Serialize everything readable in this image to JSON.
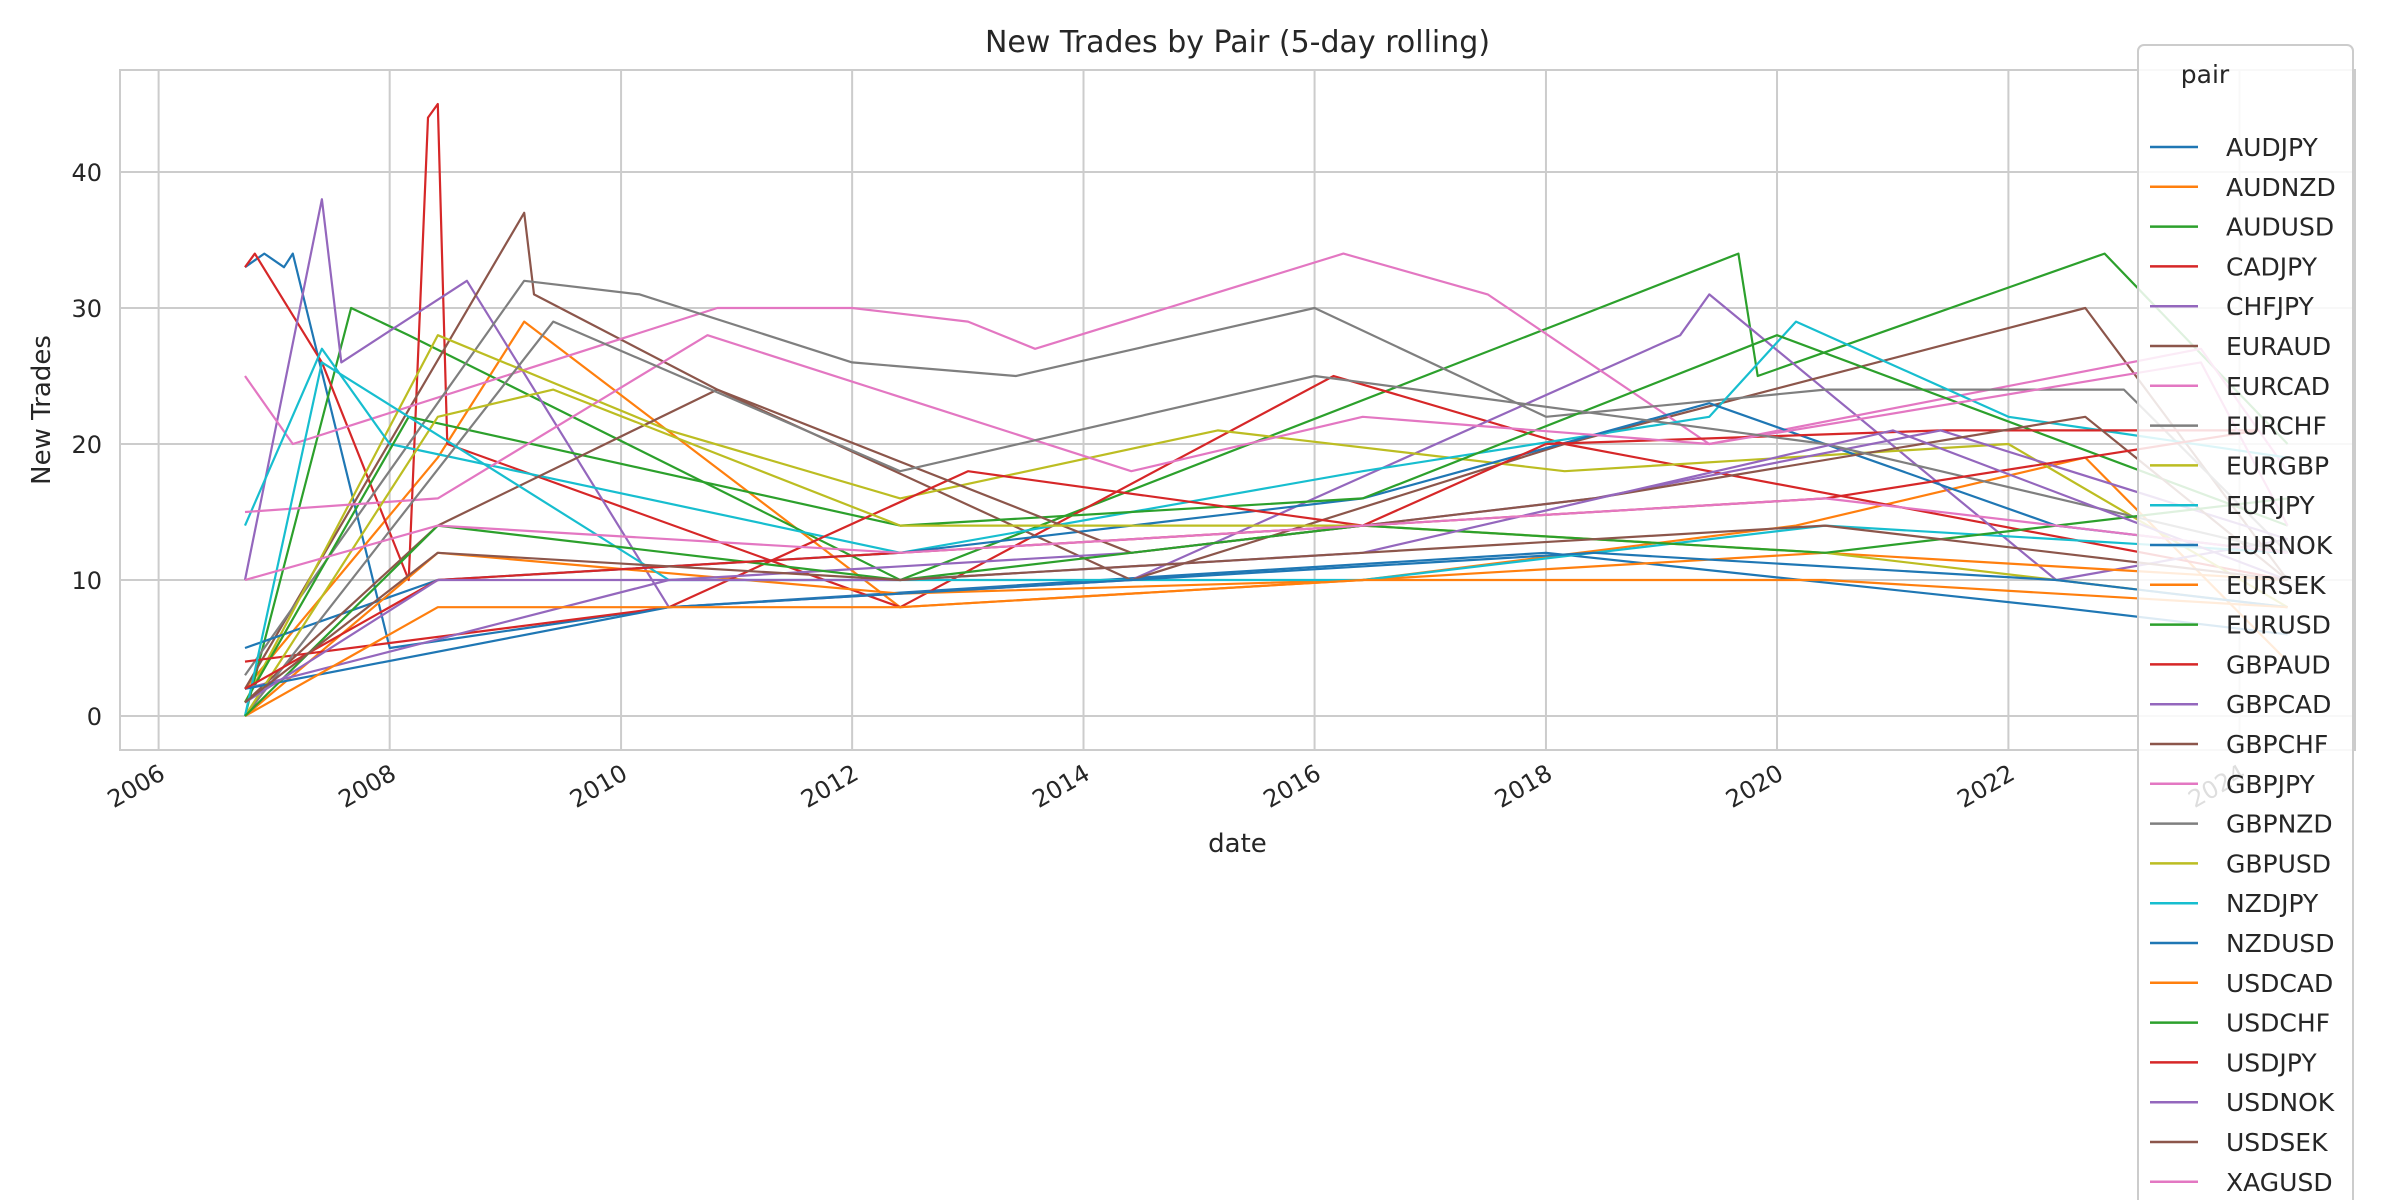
{
  "chart_data": {
    "type": "line",
    "title": "New Trades by Pair (5-day rolling)",
    "xlabel": "date",
    "ylabel": "New Trades",
    "x_range": [
      "2005-09-01",
      "2024-12-31"
    ],
    "ylim": [
      -2.5,
      47.5
    ],
    "y_ticks": [
      0,
      10,
      20,
      30,
      40
    ],
    "x_tick_labels": [
      "2006",
      "2008",
      "2010",
      "2012",
      "2014",
      "2016",
      "2018",
      "2020",
      "2022",
      "2024"
    ],
    "grid": true,
    "legend_title": "pair",
    "legend_position": "right (overflowing below plot)",
    "series": [
      {
        "name": "AUDJPY",
        "color": "#1f77b4",
        "points": [
          [
            "2006-10",
            33
          ],
          [
            "2006-12",
            34
          ],
          [
            "2007-02",
            33
          ],
          [
            "2007-03",
            34
          ],
          [
            "2008-01",
            5
          ],
          [
            "2010-06",
            8
          ],
          [
            "2014-03",
            10
          ],
          [
            "2018-01",
            12
          ],
          [
            "2022-06",
            8
          ],
          [
            "2024-06",
            6
          ]
        ]
      },
      {
        "name": "AUDNZD",
        "color": "#ff7f0e",
        "points": [
          [
            "2006-10",
            2
          ],
          [
            "2008-06",
            19
          ],
          [
            "2009-03",
            29
          ],
          [
            "2012-06",
            8
          ],
          [
            "2016-06",
            10
          ],
          [
            "2020-03",
            14
          ],
          [
            "2022-09",
            19
          ],
          [
            "2024-06",
            4
          ]
        ]
      },
      {
        "name": "AUDUSD",
        "color": "#2ca02c",
        "points": [
          [
            "2006-10",
            0
          ],
          [
            "2007-09",
            30
          ],
          [
            "2008-03",
            28
          ],
          [
            "2012-06",
            10
          ],
          [
            "2018-03",
            29
          ],
          [
            "2019-09",
            34
          ],
          [
            "2019-11",
            25
          ],
          [
            "2022-11",
            34
          ],
          [
            "2024-06",
            20
          ]
        ]
      },
      {
        "name": "CADJPY",
        "color": "#d62728",
        "points": [
          [
            "2006-10",
            33
          ],
          [
            "2006-11",
            34
          ],
          [
            "2007-06",
            26
          ],
          [
            "2008-03",
            10
          ],
          [
            "2008-05",
            44
          ],
          [
            "2008-06",
            45
          ],
          [
            "2008-07",
            20
          ],
          [
            "2012-06",
            8
          ],
          [
            "2016-03",
            25
          ],
          [
            "2018-03",
            20
          ],
          [
            "2024-06",
            10
          ]
        ]
      },
      {
        "name": "CHFJPY",
        "color": "#9467bd",
        "points": [
          [
            "2006-10",
            10
          ],
          [
            "2007-06",
            38
          ],
          [
            "2007-08",
            26
          ],
          [
            "2008-09",
            32
          ],
          [
            "2010-06",
            8
          ],
          [
            "2014-06",
            10
          ],
          [
            "2019-03",
            28
          ],
          [
            "2019-06",
            31
          ],
          [
            "2022-06",
            10
          ],
          [
            "2024-06",
            13
          ]
        ]
      },
      {
        "name": "EURAUD",
        "color": "#8c564b",
        "points": [
          [
            "2006-10",
            2
          ],
          [
            "2009-03",
            37
          ],
          [
            "2009-04",
            31
          ],
          [
            "2010-11",
            24
          ],
          [
            "2014-06",
            10
          ],
          [
            "2018-03",
            20
          ],
          [
            "2022-09",
            30
          ],
          [
            "2024-06",
            10
          ]
        ]
      },
      {
        "name": "EURCAD",
        "color": "#e377c2",
        "points": [
          [
            "2006-10",
            25
          ],
          [
            "2007-03",
            20
          ],
          [
            "2010-11",
            30
          ],
          [
            "2012-01",
            30
          ],
          [
            "2013-01",
            29
          ],
          [
            "2013-08",
            27
          ],
          [
            "2016-04",
            34
          ],
          [
            "2017-07",
            31
          ],
          [
            "2019-06",
            20
          ],
          [
            "2023-09",
            27
          ],
          [
            "2024-06",
            18
          ]
        ]
      },
      {
        "name": "EURCHF",
        "color": "#7f7f7f",
        "points": [
          [
            "2006-10",
            3
          ],
          [
            "2009-03",
            32
          ],
          [
            "2010-03",
            31
          ],
          [
            "2012-01",
            26
          ],
          [
            "2013-06",
            25
          ],
          [
            "2016-01",
            30
          ],
          [
            "2018-01",
            22
          ],
          [
            "2020-06",
            24
          ],
          [
            "2023-01",
            24
          ],
          [
            "2024-06",
            12
          ]
        ]
      },
      {
        "name": "EURGBP",
        "color": "#bcbd22",
        "points": [
          [
            "2006-10",
            1
          ],
          [
            "2008-06",
            28
          ],
          [
            "2010-06",
            21
          ],
          [
            "2012-06",
            16
          ],
          [
            "2015-03",
            21
          ],
          [
            "2018-03",
            18
          ],
          [
            "2022-01",
            20
          ],
          [
            "2024-06",
            8
          ]
        ]
      },
      {
        "name": "EURJPY",
        "color": "#17becf",
        "points": [
          [
            "2006-10",
            14
          ],
          [
            "2007-06",
            27
          ],
          [
            "2008-01",
            20
          ],
          [
            "2012-06",
            12
          ],
          [
            "2016-06",
            18
          ],
          [
            "2019-06",
            22
          ],
          [
            "2020-03",
            29
          ],
          [
            "2022-01",
            22
          ],
          [
            "2024-06",
            19
          ]
        ]
      },
      {
        "name": "EURNOK",
        "color": "#1f77b4",
        "points": [
          [
            "2006-10",
            5
          ],
          [
            "2008-06",
            10
          ],
          [
            "2012-06",
            12
          ],
          [
            "2016-06",
            16
          ],
          [
            "2019-06",
            23
          ],
          [
            "2022-06",
            14
          ],
          [
            "2024-06",
            12
          ]
        ]
      },
      {
        "name": "EURSEK",
        "color": "#ff7f0e",
        "points": [
          [
            "2006-10",
            0
          ],
          [
            "2008-06",
            12
          ],
          [
            "2012-06",
            9
          ],
          [
            "2016-06",
            10
          ],
          [
            "2020-06",
            12
          ],
          [
            "2024-06",
            10
          ]
        ]
      },
      {
        "name": "EURUSD",
        "color": "#2ca02c",
        "points": [
          [
            "2006-10",
            1
          ],
          [
            "2008-03",
            22
          ],
          [
            "2012-06",
            14
          ],
          [
            "2016-06",
            16
          ],
          [
            "2020-01",
            28
          ],
          [
            "2024-06",
            14
          ]
        ]
      },
      {
        "name": "GBPAUD",
        "color": "#d62728",
        "points": [
          [
            "2006-10",
            4
          ],
          [
            "2010-06",
            8
          ],
          [
            "2013-01",
            18
          ],
          [
            "2016-06",
            14
          ],
          [
            "2018-01",
            20
          ],
          [
            "2021-06",
            21
          ],
          [
            "2024-03",
            21
          ]
        ]
      },
      {
        "name": "GBPCAD",
        "color": "#9467bd",
        "points": [
          [
            "2006-10",
            2
          ],
          [
            "2010-06",
            10
          ],
          [
            "2014-06",
            12
          ],
          [
            "2018-06",
            16
          ],
          [
            "2021-06",
            21
          ],
          [
            "2024-06",
            13
          ]
        ]
      },
      {
        "name": "GBPCHF",
        "color": "#8c564b",
        "points": [
          [
            "2006-10",
            1
          ],
          [
            "2008-06",
            14
          ],
          [
            "2010-11",
            24
          ],
          [
            "2014-06",
            12
          ],
          [
            "2018-06",
            16
          ],
          [
            "2022-09",
            22
          ],
          [
            "2024-06",
            10
          ]
        ]
      },
      {
        "name": "GBPJPY",
        "color": "#e377c2",
        "points": [
          [
            "2006-10",
            15
          ],
          [
            "2008-06",
            16
          ],
          [
            "2010-10",
            28
          ],
          [
            "2014-06",
            18
          ],
          [
            "2016-06",
            22
          ],
          [
            "2019-06",
            20
          ],
          [
            "2023-09",
            26
          ],
          [
            "2024-06",
            14
          ]
        ]
      },
      {
        "name": "GBPNZD",
        "color": "#7f7f7f",
        "points": [
          [
            "2006-10",
            0
          ],
          [
            "2009-06",
            29
          ],
          [
            "2012-06",
            18
          ],
          [
            "2016-01",
            25
          ],
          [
            "2020-06",
            20
          ],
          [
            "2024-06",
            12
          ]
        ]
      },
      {
        "name": "GBPUSD",
        "color": "#bcbd22",
        "points": [
          [
            "2006-10",
            0
          ],
          [
            "2008-06",
            22
          ],
          [
            "2009-06",
            24
          ],
          [
            "2012-06",
            14
          ],
          [
            "2016-06",
            14
          ],
          [
            "2020-06",
            12
          ],
          [
            "2024-06",
            8
          ]
        ]
      },
      {
        "name": "NZDJPY",
        "color": "#17becf",
        "points": [
          [
            "2006-10",
            0
          ],
          [
            "2007-06",
            26
          ],
          [
            "2010-06",
            10
          ],
          [
            "2016-06",
            10
          ],
          [
            "2020-06",
            14
          ],
          [
            "2024-06",
            12
          ]
        ]
      },
      {
        "name": "NZDUSD",
        "color": "#1f77b4",
        "points": [
          [
            "2006-10",
            2
          ],
          [
            "2010-06",
            8
          ],
          [
            "2014-06",
            10
          ],
          [
            "2018-06",
            12
          ],
          [
            "2022-06",
            10
          ],
          [
            "2024-06",
            8
          ]
        ]
      },
      {
        "name": "USDCAD",
        "color": "#ff7f0e",
        "points": [
          [
            "2006-10",
            0
          ],
          [
            "2008-06",
            8
          ],
          [
            "2012-06",
            8
          ],
          [
            "2016-06",
            10
          ],
          [
            "2020-06",
            10
          ],
          [
            "2024-06",
            8
          ]
        ]
      },
      {
        "name": "USDCHF",
        "color": "#2ca02c",
        "points": [
          [
            "2006-10",
            0
          ],
          [
            "2008-06",
            14
          ],
          [
            "2012-06",
            10
          ],
          [
            "2016-06",
            14
          ],
          [
            "2020-06",
            12
          ],
          [
            "2024-06",
            16
          ]
        ]
      },
      {
        "name": "USDJPY",
        "color": "#d62728",
        "points": [
          [
            "2006-10",
            2
          ],
          [
            "2008-06",
            10
          ],
          [
            "2012-06",
            12
          ],
          [
            "2016-06",
            14
          ],
          [
            "2020-06",
            16
          ],
          [
            "2024-03",
            21
          ]
        ]
      },
      {
        "name": "USDNOK",
        "color": "#9467bd",
        "points": [
          [
            "2006-10",
            1
          ],
          [
            "2008-06",
            10
          ],
          [
            "2012-06",
            10
          ],
          [
            "2016-06",
            12
          ],
          [
            "2021-01",
            21
          ],
          [
            "2024-06",
            10
          ]
        ]
      },
      {
        "name": "USDSEK",
        "color": "#8c564b",
        "points": [
          [
            "2006-10",
            1
          ],
          [
            "2008-06",
            12
          ],
          [
            "2012-06",
            10
          ],
          [
            "2016-06",
            12
          ],
          [
            "2020-06",
            14
          ],
          [
            "2024-06",
            10
          ]
        ]
      },
      {
        "name": "XAGUSD",
        "color": "#e377c2",
        "points": [
          [
            "2006-10",
            10
          ],
          [
            "2008-06",
            14
          ],
          [
            "2012-06",
            12
          ],
          [
            "2016-06",
            14
          ],
          [
            "2020-06",
            16
          ],
          [
            "2024-06",
            12
          ]
        ]
      }
    ]
  }
}
